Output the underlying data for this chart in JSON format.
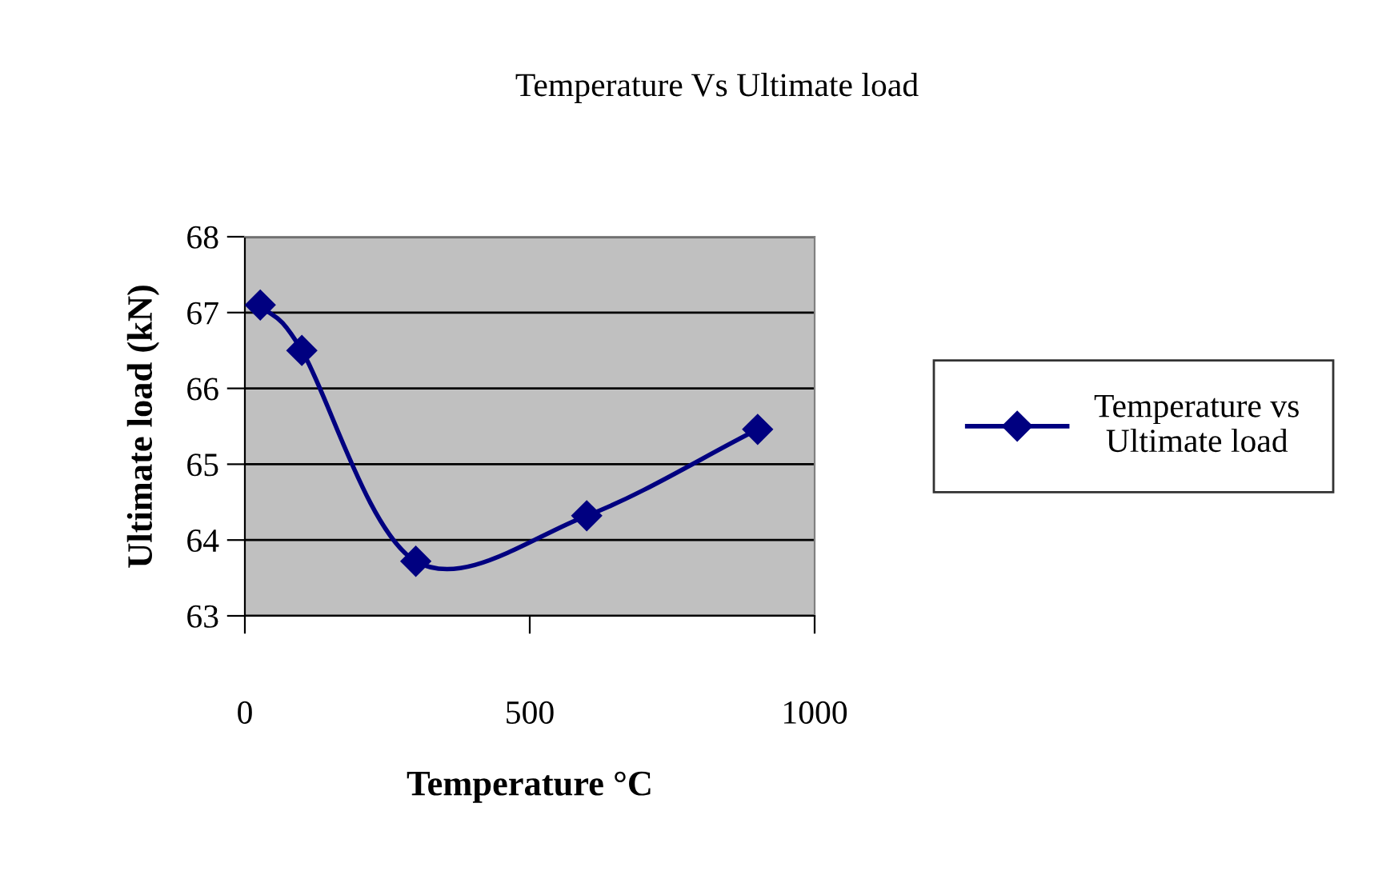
{
  "chart_data": {
    "type": "line",
    "title": "Temperature Vs Ultimate load",
    "xlabel": "Temperature °C",
    "ylabel": "Ultimate load (kN)",
    "x": [
      27,
      100,
      300,
      600,
      900
    ],
    "series": [
      {
        "name": "Temperature vs\nUltimate load",
        "color": "#000080",
        "values": [
          67.1,
          66.5,
          63.72,
          64.32,
          65.46
        ]
      }
    ],
    "xlim": [
      0,
      1000
    ],
    "xticks": [
      0,
      500,
      1000
    ],
    "ylim": [
      63,
      68
    ],
    "yticks": [
      63,
      64,
      65,
      66,
      67,
      68
    ],
    "grid": "y",
    "legend": "right",
    "marker": "diamond"
  }
}
